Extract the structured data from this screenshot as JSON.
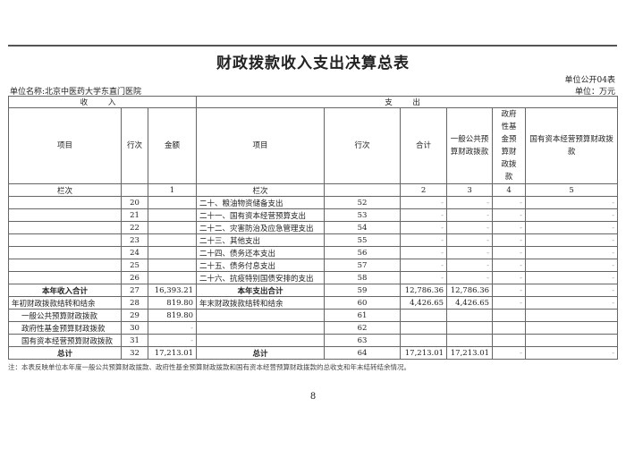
{
  "title": "财政拨款收入支出决算总表",
  "form_no": "单位公开04表",
  "unit_name": "单位名称:北京中医药大学东直门医院",
  "unit": "单位：万元",
  "header": {
    "income": "收 入",
    "expense": "支 出",
    "cols": [
      "项目",
      "行次",
      "金额",
      "项目",
      "行次",
      "合计",
      "一般公共预算财政拨款",
      "政府性基金预算财政拨款",
      "国有资本经营预算财政拨款"
    ],
    "index_row": [
      "栏次",
      "",
      "1",
      "栏次",
      "",
      "2",
      "3",
      "4",
      "5"
    ]
  },
  "rows": [
    {
      "cells": [
        "",
        "20",
        "",
        "二十、粮油物资储备支出",
        "52",
        "-",
        "-",
        "-",
        "-"
      ]
    },
    {
      "cells": [
        "",
        "21",
        "",
        "二十一、国有资本经营预算支出",
        "53",
        "-",
        "-",
        "-",
        "-"
      ]
    },
    {
      "cells": [
        "",
        "22",
        "",
        "二十二、灾害防治及应急管理支出",
        "54",
        "-",
        "-",
        "-",
        "-"
      ]
    },
    {
      "cells": [
        "",
        "23",
        "",
        "二十三、其他支出",
        "55",
        "-",
        "-",
        "-",
        "-"
      ]
    },
    {
      "cells": [
        "",
        "24",
        "",
        "二十四、债务还本支出",
        "56",
        "-",
        "-",
        "-",
        "-"
      ]
    },
    {
      "cells": [
        "",
        "25",
        "",
        "二十五、债务付息支出",
        "57",
        "-",
        "-",
        "-",
        "-"
      ]
    },
    {
      "cells": [
        "",
        "26",
        "",
        "二十六、抗疫特别国债安排的支出",
        "58",
        "-",
        "-",
        "-",
        "-"
      ]
    },
    {
      "cells": [
        "本年收入合计",
        "27",
        "16,393.21",
        "本年支出合计",
        "59",
        "12,786.36",
        "12,786.36",
        "-",
        "-"
      ],
      "bold": true
    },
    {
      "cells": [
        "年初财政拨款结转和结余",
        "28",
        "819.80",
        "年末财政拨款结转和结余",
        "60",
        "4,426.65",
        "4,426.65",
        "-",
        "-"
      ]
    },
    {
      "cells": [
        "一般公共预算财政拨款",
        "29",
        "819.80",
        "",
        "61",
        "",
        "",
        "",
        ""
      ],
      "indent": true
    },
    {
      "cells": [
        "政府性基金预算财政拨款",
        "30",
        "-",
        "",
        "62",
        "",
        "",
        "",
        ""
      ],
      "indent": true
    },
    {
      "cells": [
        "国有资本经营预算财政拨款",
        "31",
        "-",
        "",
        "63",
        "",
        "",
        "",
        ""
      ],
      "indent": true
    },
    {
      "cells": [
        "总计",
        "32",
        "17,213.01",
        "总计",
        "64",
        "17,213.01",
        "17,213.01",
        "-",
        "-"
      ],
      "bold": true
    }
  ],
  "note": "注：本表反映单位本年度一般公共预算财政拨款、政府性基金预算财政拨款和国有资本经营预算财政拨款的总收支和年末结转结余情况。",
  "page_number": "8"
}
